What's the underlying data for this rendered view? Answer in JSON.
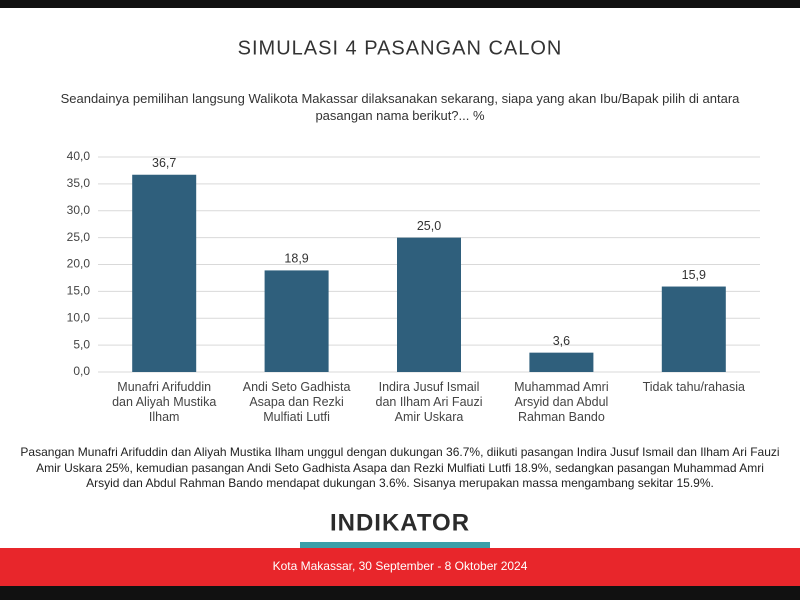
{
  "chart_data": {
    "type": "bar",
    "title": "SIMULASI 4 PASANGAN CALON",
    "subtitle": "Seandainya pemilihan langsung Walikota Makassar dilaksanakan sekarang, siapa yang akan Ibu/Bapak pilih di antara pasangan nama berikut?... %",
    "categories": [
      "Munafri Arifuddin dan Aliyah Mustika Ilham",
      "Andi Seto Gadhista Asapa dan Rezki Mulfiati Lutfi",
      "Indira Jusuf Ismail dan Ilham Ari Fauzi Amir Uskara",
      "Muhammad Amri Arsyid dan Abdul Rahman Bando",
      "Tidak tahu/rahasia"
    ],
    "values": [
      36.7,
      18.9,
      25.0,
      3.6,
      15.9
    ],
    "value_labels": [
      "36,7",
      "18,9",
      "25,0",
      "3,6",
      "15,9"
    ],
    "color": "#2f5f7c",
    "ylim": [
      0,
      40
    ],
    "yticks": [
      {
        "value": 0,
        "label": "0,0"
      },
      {
        "value": 5,
        "label": "5,0"
      },
      {
        "value": 10,
        "label": "10,0"
      },
      {
        "value": 15,
        "label": "15,0"
      },
      {
        "value": 20,
        "label": "20,0"
      },
      {
        "value": 25,
        "label": "25,0"
      },
      {
        "value": 30,
        "label": "30,0"
      },
      {
        "value": 35,
        "label": "35,0"
      },
      {
        "value": 40,
        "label": "40,0"
      }
    ],
    "grid": true
  },
  "summary": "Pasangan Munafri Arifuddin dan Aliyah Mustika Ilham unggul dengan dukungan 36.7%, diikuti pasangan Indira Jusuf Ismail dan Ilham Ari Fauzi Amir Uskara 25%, kemudian pasangan Andi Seto Gadhista Asapa dan Rezki Mulfiati Lutfi 18.9%, sedangkan pasangan Muhammad Amri Arsyid dan Abdul Rahman Bando mendapat dukungan 3.6%. Sisanya merupakan massa mengambang sekitar 15.9%.",
  "logo": "INDIKATOR",
  "footer": "Kota Makassar, 30 September - 8 Oktober 2024"
}
